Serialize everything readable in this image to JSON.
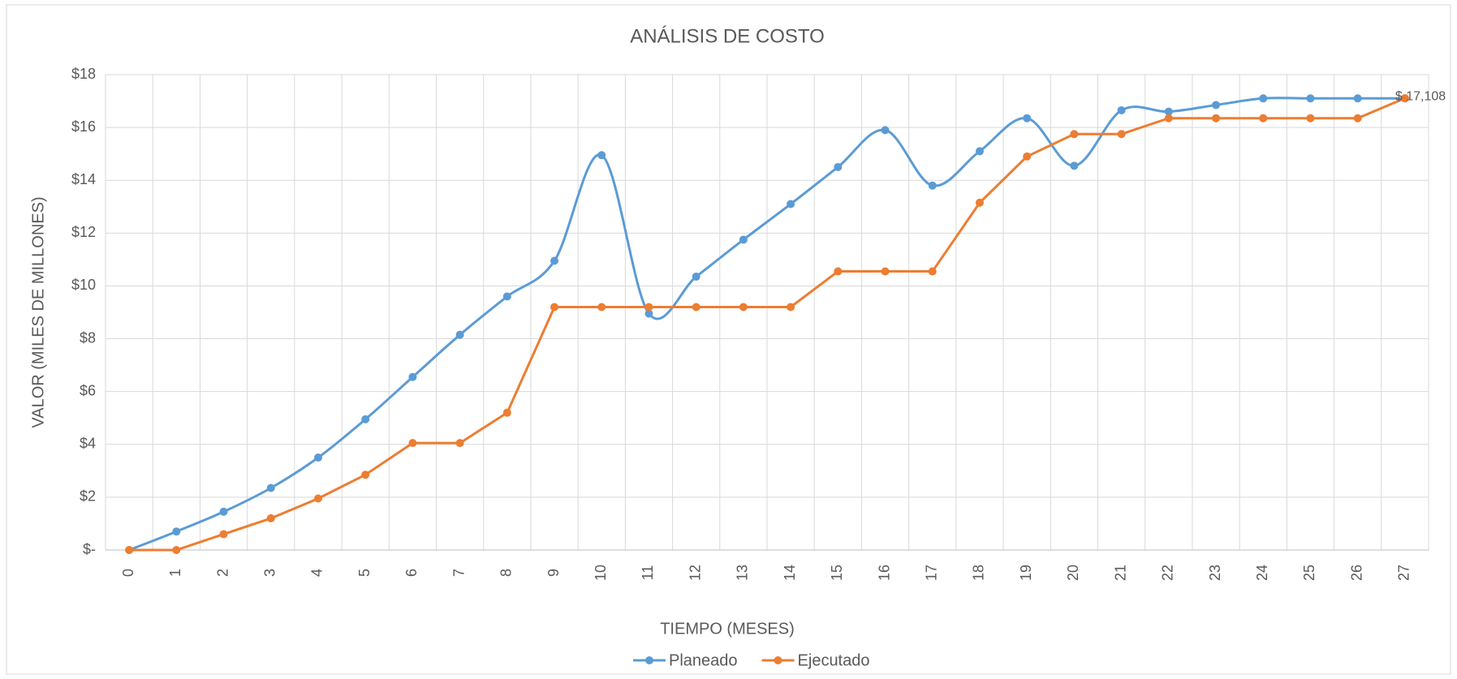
{
  "chart_data": {
    "type": "line",
    "title": "ANÁLISIS DE COSTO",
    "xlabel": "TIEMPO  (MESES)",
    "ylabel": "VALOR  (MILES DE MILLONES)",
    "categories": [
      "0",
      "1",
      "2",
      "3",
      "4",
      "5",
      "6",
      "7",
      "8",
      "9",
      "10",
      "11",
      "12",
      "13",
      "14",
      "15",
      "16",
      "17",
      "18",
      "19",
      "20",
      "21",
      "22",
      "23",
      "24",
      "25",
      "26",
      "27"
    ],
    "series": [
      {
        "name": "Planeado",
        "color": "#5b9bd5",
        "smooth": true,
        "values": [
          0,
          0.7,
          1.45,
          2.35,
          3.5,
          4.95,
          6.55,
          8.15,
          9.6,
          10.95,
          14.95,
          8.95,
          10.35,
          11.75,
          13.1,
          14.5,
          15.9,
          13.8,
          15.1,
          16.35,
          14.55,
          16.65,
          16.6,
          16.85,
          17.1,
          17.1,
          17.1,
          17.1
        ]
      },
      {
        "name": "Ejecutado",
        "color": "#ed7d31",
        "smooth": false,
        "values": [
          0,
          0,
          0.6,
          1.2,
          1.95,
          2.85,
          4.05,
          4.05,
          5.2,
          9.2,
          9.2,
          9.2,
          9.2,
          9.2,
          9.2,
          10.55,
          10.55,
          10.55,
          13.15,
          14.9,
          15.75,
          15.75,
          16.35,
          16.35,
          16.35,
          16.35,
          16.35,
          17.108
        ],
        "value_labels": [
          null,
          null,
          null,
          null,
          null,
          null,
          null,
          null,
          null,
          null,
          null,
          null,
          null,
          null,
          null,
          null,
          null,
          null,
          null,
          null,
          null,
          null,
          null,
          null,
          null,
          null,
          null,
          "$ 17,108"
        ]
      }
    ],
    "ylim": [
      0,
      18
    ],
    "yticks": [
      {
        "value": 0,
        "label": "$-"
      },
      {
        "value": 2,
        "label": "$2"
      },
      {
        "value": 4,
        "label": "$4"
      },
      {
        "value": 6,
        "label": "$6"
      },
      {
        "value": 8,
        "label": "$8"
      },
      {
        "value": 10,
        "label": "$10"
      },
      {
        "value": 12,
        "label": "$12"
      },
      {
        "value": 14,
        "label": "$14"
      },
      {
        "value": 16,
        "label": "$16"
      },
      {
        "value": 18,
        "label": "$18"
      }
    ],
    "grid": true,
    "legend": "bottom"
  }
}
